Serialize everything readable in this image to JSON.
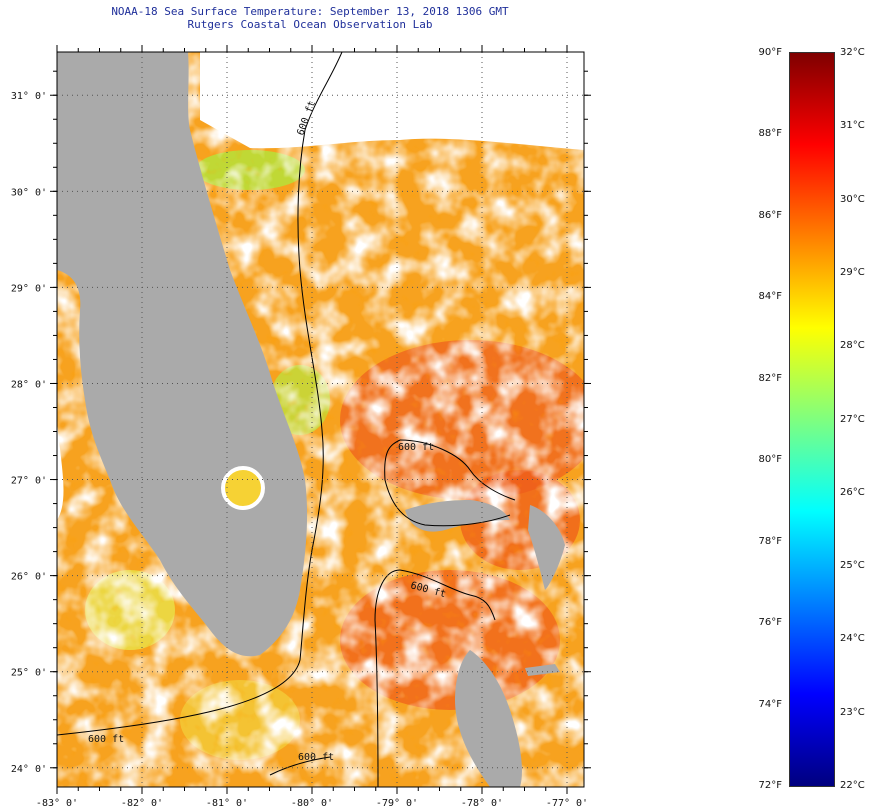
{
  "title_line1": "NOAA-18 Sea Surface Temperature:  September 13, 2018 1306 GMT",
  "title_line2": "Rutgers Coastal Ocean Observation Lab",
  "map": {
    "lon_range": [
      -83,
      -76.8
    ],
    "lat_range": [
      23.8,
      31.45
    ],
    "lon_ticks": [
      {
        "value": -83,
        "label": "-83° 0'"
      },
      {
        "value": -82,
        "label": "-82° 0'"
      },
      {
        "value": -81,
        "label": "-81° 0'"
      },
      {
        "value": -80,
        "label": "-80° 0'"
      },
      {
        "value": -79,
        "label": "-79° 0'"
      },
      {
        "value": -78,
        "label": "-78° 0'"
      },
      {
        "value": -77,
        "label": "-77° 0'"
      }
    ],
    "lat_ticks": [
      {
        "value": 31,
        "label": "31° 0'"
      },
      {
        "value": 30,
        "label": "30° 0'"
      },
      {
        "value": 29,
        "label": "29° 0'"
      },
      {
        "value": 28,
        "label": "28° 0'"
      },
      {
        "value": 27,
        "label": "27° 0'"
      },
      {
        "value": 26,
        "label": "26° 0'"
      },
      {
        "value": 25,
        "label": "25° 0'"
      },
      {
        "value": 24,
        "label": "24° 0'"
      }
    ],
    "contour_label": "600 ft",
    "land_color": "#aaaaaa",
    "cloud_color": "#ffffff"
  },
  "colorbar": {
    "f_labels": [
      "90°F",
      "88°F",
      "86°F",
      "84°F",
      "82°F",
      "80°F",
      "78°F",
      "76°F",
      "74°F",
      "72°F"
    ],
    "c_labels": [
      "32°C",
      "31°C",
      "30°C",
      "29°C",
      "28°C",
      "27°C",
      "26°C",
      "25°C",
      "24°C",
      "23°C",
      "22°C"
    ],
    "f_range": [
      72,
      90
    ],
    "c_range": [
      22,
      32
    ],
    "colors": [
      "#00007f",
      "#0000ff",
      "#007fff",
      "#00ffff",
      "#7fff7f",
      "#ffff00",
      "#ff7f00",
      "#ff0000",
      "#7f0000"
    ]
  }
}
